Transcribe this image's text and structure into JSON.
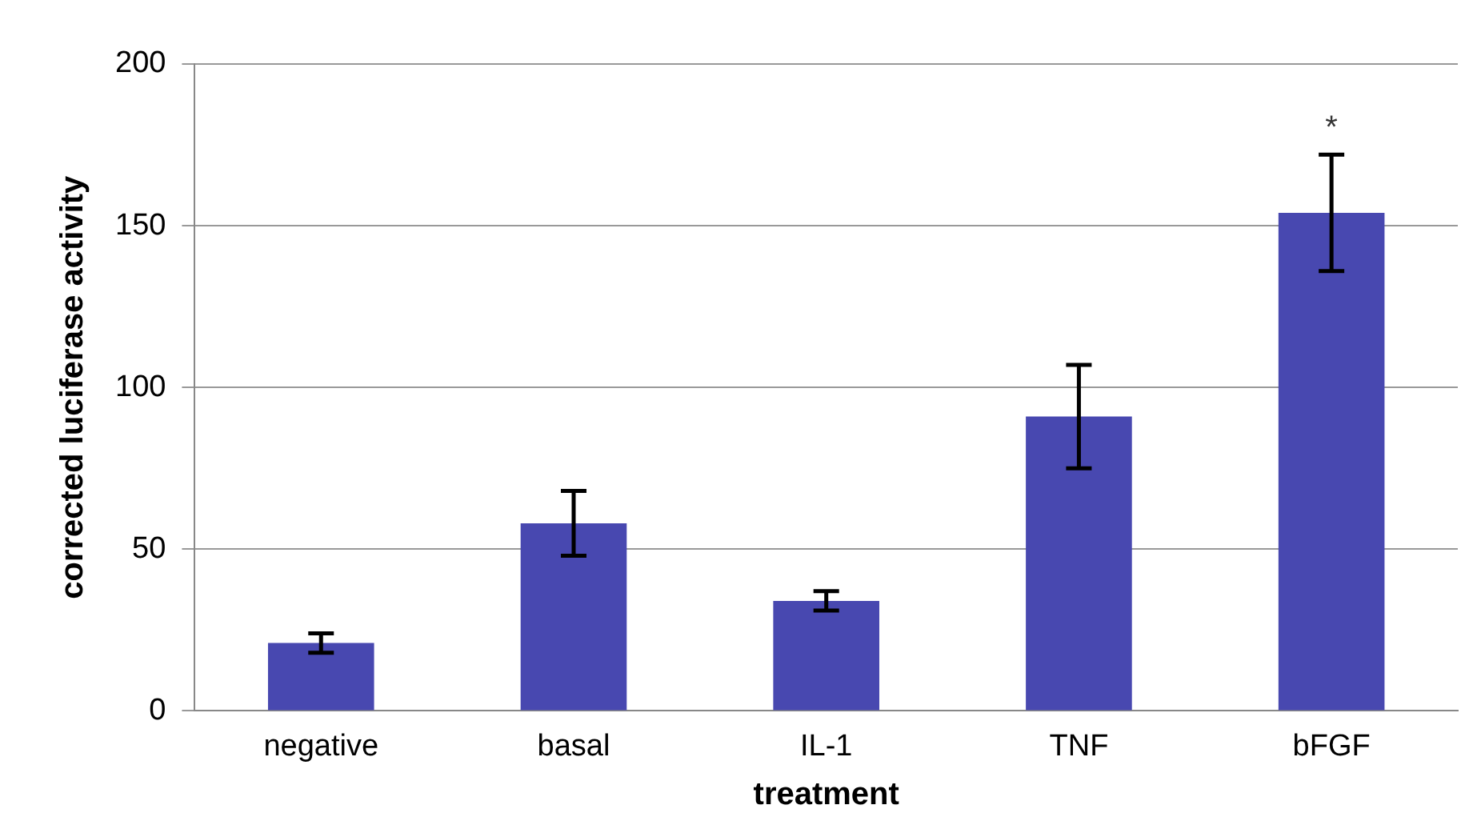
{
  "chart_data": {
    "type": "bar",
    "xlabel": "treatment",
    "ylabel": "corrected luciferase activity",
    "categories": [
      "negative",
      "basal",
      "IL-1",
      "TNF",
      "bFGF"
    ],
    "values": [
      21,
      58,
      34,
      91,
      154
    ],
    "errors": [
      3,
      10,
      3,
      16,
      18
    ],
    "color": "#4848b0",
    "ylim": [
      0,
      200
    ],
    "yticks": [
      0,
      50,
      100,
      150,
      200
    ],
    "grid": "y",
    "legend": false,
    "annotations": [
      "*"
    ]
  }
}
